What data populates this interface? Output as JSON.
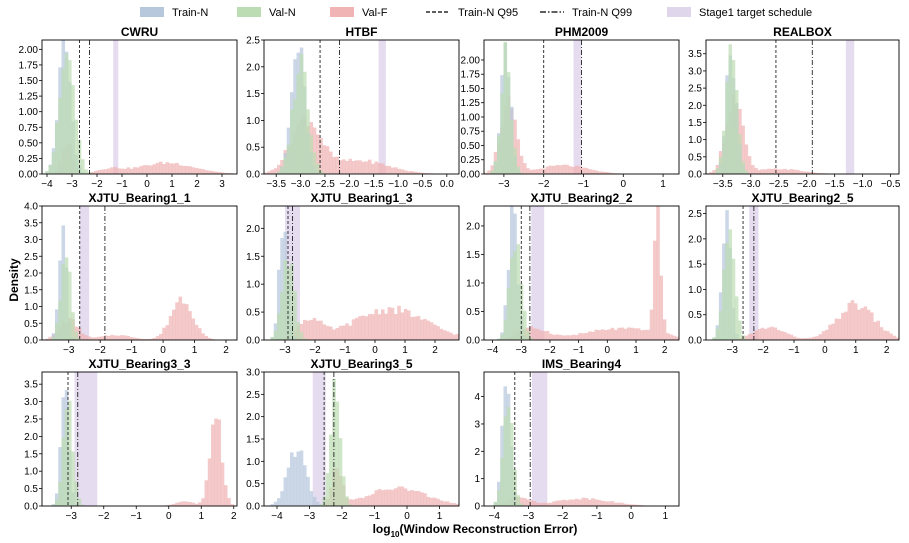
{
  "legend": [
    {
      "label": "Train-N",
      "kind": "patch",
      "color": "#b7c7dc"
    },
    {
      "label": "Val-N",
      "kind": "patch",
      "color": "#bcdcb4"
    },
    {
      "label": "Val-F",
      "kind": "patch",
      "color": "#f0b4b4"
    },
    {
      "label": "Train-N Q95",
      "kind": "line",
      "dash": "dashed"
    },
    {
      "label": "Train-N Q99",
      "kind": "line",
      "dash": "dashdot"
    },
    {
      "label": "Stage1 target schedule",
      "kind": "patch",
      "color": "#e0d6ec"
    }
  ],
  "xlabel_prefix": "log",
  "xlabel_sub": "10",
  "xlabel_rest": "(Window Reconstruction Error)",
  "ylabel": "Density",
  "colors": {
    "train": "#b7c7dc",
    "val": "#bcdcb4",
    "fault": "#f0b4b4",
    "schedule": "#e0d6ec"
  },
  "chart_data": [
    {
      "type": "histogram",
      "title": "CWRU",
      "xlim": [
        -4.2,
        3.6
      ],
      "ylim": [
        0,
        2.15
      ],
      "xticks": [
        -4,
        -3,
        -2,
        -1,
        0,
        1,
        2,
        3
      ],
      "yticks": [
        0,
        0.25,
        0.5,
        0.75,
        1.0,
        1.25,
        1.5,
        1.75,
        2.0
      ],
      "q95": -2.7,
      "q99": -2.3,
      "schedule": [
        -1.35,
        -1.15
      ],
      "train": {
        "center": -3.3,
        "spread": 0.25,
        "peak": 2.05
      },
      "val": {
        "center": -3.2,
        "spread": 0.3,
        "peak": 1.9
      },
      "fault": {
        "components": [
          {
            "center": -3.2,
            "spread": 0.2,
            "peak": 0.5
          },
          {
            "center": -1.5,
            "spread": 0.5,
            "peak": 0.08
          },
          {
            "center": 0.8,
            "spread": 1.1,
            "peak": 0.18
          }
        ]
      }
    },
    {
      "type": "histogram",
      "title": "HTBF",
      "xlim": [
        -3.75,
        0.25
      ],
      "ylim": [
        0,
        2.5
      ],
      "xticks": [
        -3.5,
        -3.0,
        -2.5,
        -2.0,
        -1.5,
        -1.0,
        -0.5,
        0.0
      ],
      "yticks": [
        0,
        0.5,
        1.0,
        1.5,
        2.0,
        2.5
      ],
      "q95": -2.6,
      "q99": -2.2,
      "schedule": [
        -1.4,
        -1.25
      ],
      "train": {
        "center": -3.05,
        "spread": 0.14,
        "peak": 2.35
      },
      "val": {
        "center": -3.0,
        "spread": 0.16,
        "peak": 2.1
      },
      "fault": {
        "components": [
          {
            "center": -2.9,
            "spread": 0.3,
            "peak": 1.0
          },
          {
            "center": -1.8,
            "spread": 0.6,
            "peak": 0.25
          }
        ]
      }
    },
    {
      "type": "histogram",
      "title": "PHM2009",
      "xlim": [
        -3.5,
        1.4
      ],
      "ylim": [
        0,
        2.35
      ],
      "xticks": [
        -3,
        -2,
        -1,
        0,
        1
      ],
      "yticks": [
        0,
        0.25,
        0.5,
        0.75,
        1.0,
        1.25,
        1.5,
        1.75,
        2.0
      ],
      "q95": -2.0,
      "q99": -1.05,
      "schedule": [
        -1.25,
        -1.05
      ],
      "train": {
        "center": -2.95,
        "spread": 0.12,
        "peak": 2.2
      },
      "val": {
        "center": -2.95,
        "spread": 0.13,
        "peak": 2.05
      },
      "fault": {
        "components": [
          {
            "center": -2.9,
            "spread": 0.2,
            "peak": 1.2
          },
          {
            "center": -1.5,
            "spread": 0.6,
            "peak": 0.15
          }
        ]
      }
    },
    {
      "type": "histogram",
      "title": "REALBOX",
      "xlim": [
        -3.8,
        -0.35
      ],
      "ylim": [
        0,
        3.9
      ],
      "xticks": [
        -3.5,
        -3.0,
        -2.5,
        -2.0,
        -1.5,
        -1.0,
        -0.5
      ],
      "yticks": [
        0,
        0.5,
        1.0,
        1.5,
        2.0,
        2.5,
        3.0,
        3.5
      ],
      "q95": -2.55,
      "q99": -1.9,
      "schedule": [
        -1.3,
        -1.15
      ],
      "train": {
        "center": -3.35,
        "spread": 0.09,
        "peak": 3.6
      },
      "val": {
        "center": -3.35,
        "spread": 0.1,
        "peak": 3.4
      },
      "fault": {
        "components": [
          {
            "center": -3.3,
            "spread": 0.15,
            "peak": 2.2
          },
          {
            "center": -2.5,
            "spread": 0.4,
            "peak": 0.15
          }
        ]
      }
    },
    {
      "type": "histogram",
      "title": "XJTU_Bearing1_1",
      "xlim": [
        -3.85,
        2.35
      ],
      "ylim": [
        0,
        4.0
      ],
      "xticks": [
        -3,
        -2,
        -1,
        0,
        1,
        2
      ],
      "yticks": [
        0,
        0.5,
        1.0,
        1.5,
        2.0,
        2.5,
        3.0,
        3.5,
        4.0
      ],
      "q95": -2.65,
      "q99": -1.85,
      "schedule": [
        -2.65,
        -2.35
      ],
      "train": {
        "center": -3.2,
        "spread": 0.12,
        "peak": 3.3
      },
      "val": {
        "center": -3.1,
        "spread": 0.15,
        "peak": 2.8
      },
      "fault": {
        "components": [
          {
            "center": -3.0,
            "spread": 0.3,
            "peak": 0.6
          },
          {
            "center": -1.5,
            "spread": 0.5,
            "peak": 0.15
          },
          {
            "center": 0.6,
            "spread": 0.35,
            "peak": 1.25
          }
        ]
      }
    },
    {
      "type": "histogram",
      "title": "XJTU_Bearing1_3",
      "xlim": [
        -3.7,
        2.8
      ],
      "ylim": [
        0,
        2.4
      ],
      "xticks": [
        -3,
        -2,
        -1,
        0,
        1,
        2
      ],
      "yticks": [
        0,
        0.5,
        1.0,
        1.5,
        2.0
      ],
      "q95": -2.9,
      "q99": -2.75,
      "schedule": [
        -3.0,
        -2.5
      ],
      "train": {
        "center": -3.05,
        "spread": 0.14,
        "peak": 2.25
      },
      "val": {
        "center": -2.9,
        "spread": 0.2,
        "peak": 1.5
      },
      "fault": {
        "components": [
          {
            "center": -2.2,
            "spread": 0.4,
            "peak": 0.35
          },
          {
            "center": 0.5,
            "spread": 1.2,
            "peak": 0.55
          }
        ]
      }
    },
    {
      "type": "histogram",
      "title": "XJTU_Bearing2_2",
      "xlim": [
        -4.3,
        2.5
      ],
      "ylim": [
        0,
        2.35
      ],
      "xticks": [
        -4,
        -3,
        -2,
        -1,
        0,
        1,
        2
      ],
      "yticks": [
        0,
        0.5,
        1.0,
        1.5,
        2.0
      ],
      "q95": -3.0,
      "q99": -2.7,
      "schedule": [
        -2.65,
        -2.2
      ],
      "train": {
        "center": -3.3,
        "spread": 0.16,
        "peak": 2.2
      },
      "val": {
        "center": -3.2,
        "spread": 0.2,
        "peak": 1.8
      },
      "fault": {
        "components": [
          {
            "center": -2.6,
            "spread": 0.5,
            "peak": 0.2
          },
          {
            "center": 0.5,
            "spread": 1.3,
            "peak": 0.2
          },
          {
            "center": 1.75,
            "spread": 0.12,
            "peak": 2.05
          }
        ]
      }
    },
    {
      "type": "histogram",
      "title": "XJTU_Bearing2_5",
      "xlim": [
        -3.85,
        2.4
      ],
      "ylim": [
        0,
        2.65
      ],
      "xticks": [
        -3,
        -2,
        -1,
        0,
        1,
        2
      ],
      "yticks": [
        0,
        0.5,
        1.0,
        1.5,
        2.0,
        2.5
      ],
      "q95": -2.65,
      "q99": -2.3,
      "schedule": [
        -2.45,
        -2.15
      ],
      "train": {
        "center": -3.2,
        "spread": 0.14,
        "peak": 2.55
      },
      "val": {
        "center": -3.1,
        "spread": 0.18,
        "peak": 2.2
      },
      "fault": {
        "components": [
          {
            "center": -1.8,
            "spread": 0.5,
            "peak": 0.25
          },
          {
            "center": 1.0,
            "spread": 0.6,
            "peak": 0.7
          }
        ]
      }
    },
    {
      "type": "histogram",
      "title": "XJTU_Bearing3_3",
      "xlim": [
        -3.9,
        2.1
      ],
      "ylim": [
        0,
        3.85
      ],
      "xticks": [
        -3,
        -2,
        -1,
        0,
        1,
        2
      ],
      "yticks": [
        0,
        0.5,
        1.0,
        1.5,
        2.0,
        2.5,
        3.0,
        3.5
      ],
      "q95": -3.1,
      "q99": -2.8,
      "schedule": [
        -2.9,
        -2.2
      ],
      "train": {
        "center": -3.2,
        "spread": 0.12,
        "peak": 3.6
      },
      "val": {
        "center": -3.1,
        "spread": 0.15,
        "peak": 3.0
      },
      "fault": {
        "components": [
          {
            "center": 0.5,
            "spread": 0.3,
            "peak": 0.12
          },
          {
            "center": 1.45,
            "spread": 0.18,
            "peak": 2.7
          }
        ]
      }
    },
    {
      "type": "histogram",
      "title": "XJTU_Bearing3_5",
      "xlim": [
        -4.4,
        1.6
      ],
      "ylim": [
        0,
        3.0
      ],
      "xticks": [
        -4,
        -3,
        -2,
        -1,
        0,
        1
      ],
      "yticks": [
        0,
        0.5,
        1.0,
        1.5,
        2.0,
        2.5,
        3.0
      ],
      "q95": -2.55,
      "q99": -2.25,
      "schedule": [
        -2.9,
        -2.5
      ],
      "train": {
        "center": -3.4,
        "spread": 0.28,
        "peak": 1.3
      },
      "val": {
        "center": -2.2,
        "spread": 0.15,
        "peak": 2.9
      },
      "fault": {
        "components": [
          {
            "center": -2.15,
            "spread": 0.15,
            "peak": 0.9
          },
          {
            "center": -0.3,
            "spread": 0.9,
            "peak": 0.4
          }
        ]
      }
    },
    {
      "type": "histogram",
      "title": "IMS_Bearing4",
      "xlim": [
        -4.3,
        1.4
      ],
      "ylim": [
        0,
        4.9
      ],
      "xticks": [
        -4,
        -3,
        -2,
        -1,
        0,
        1
      ],
      "yticks": [
        0,
        1,
        2,
        3,
        4
      ],
      "q95": -3.4,
      "q99": -2.95,
      "schedule": [
        -2.9,
        -2.45
      ],
      "train": {
        "center": -3.65,
        "spread": 0.12,
        "peak": 4.5
      },
      "val": {
        "center": -3.6,
        "spread": 0.14,
        "peak": 4.2
      },
      "fault": {
        "components": [
          {
            "center": -3.3,
            "spread": 0.3,
            "peak": 0.35
          },
          {
            "center": -1.4,
            "spread": 0.8,
            "peak": 0.28
          }
        ]
      }
    }
  ]
}
